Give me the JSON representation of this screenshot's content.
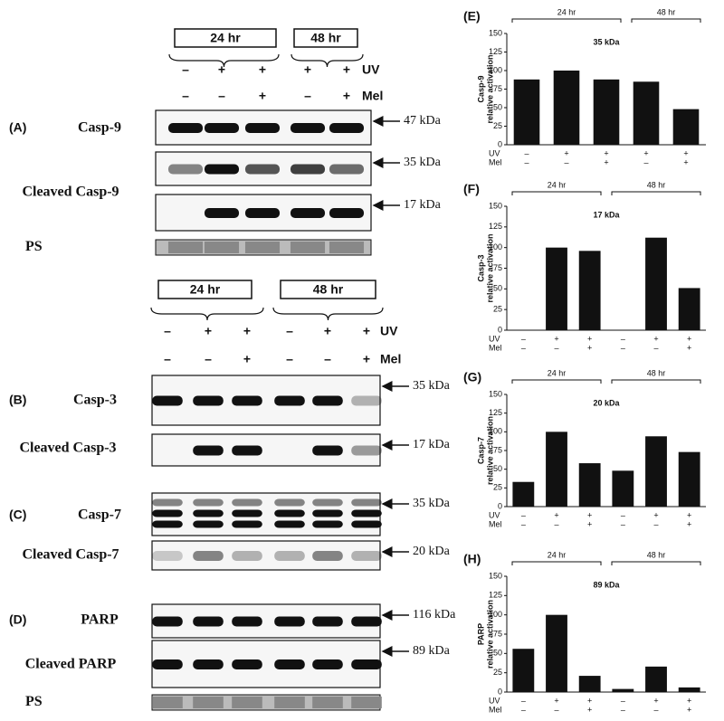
{
  "blots": [
    {
      "groups": [
        "24 hr",
        "48 hr"
      ],
      "uv": [
        "–",
        "+",
        "+",
        "+",
        "+"
      ],
      "mel": [
        "–",
        "–",
        "+",
        "–",
        "+"
      ],
      "uv_label": "UV",
      "mel_label": "Mel",
      "rows": [
        {
          "panel": "(A)",
          "name": "Casp-9",
          "marker": "47 kDa"
        },
        {
          "name": "Cleaved Casp-9",
          "marker": "35 kDa"
        },
        {
          "marker": "17 kDa"
        }
      ],
      "ps": "PS"
    },
    {
      "groups": [
        "24 hr",
        "48 hr"
      ],
      "uv": [
        "–",
        "+",
        "+",
        "–",
        "+",
        "+"
      ],
      "mel": [
        "–",
        "–",
        "+",
        "–",
        "–",
        "+"
      ],
      "uv_label": "UV",
      "mel_label": "Mel",
      "rows": [
        {
          "panel": "(B)",
          "name": "Casp-3",
          "marker": "35 kDa"
        },
        {
          "name": "Cleaved Casp-3",
          "marker": "17 kDa"
        },
        {
          "panel": "(C)",
          "name": "Casp-7",
          "marker": "35 kDa"
        },
        {
          "name": "Cleaved Casp-7",
          "marker": "20 kDa"
        },
        {
          "panel": "(D)",
          "name": "PARP",
          "marker": "116 kDa"
        },
        {
          "name": "Cleaved PARP",
          "marker": "89 kDa"
        }
      ],
      "ps": "PS"
    }
  ],
  "chart_data": [
    {
      "type": "bar",
      "panel": "(E)",
      "title": "35 kDa",
      "ylabel": [
        "Casp-9",
        "relative activation"
      ],
      "groups": [
        "24 hr",
        "48 hr"
      ],
      "row_labels": [
        "UV",
        "Mel"
      ],
      "uv": [
        "–",
        "+",
        "+",
        "+",
        "+"
      ],
      "mel": [
        "–",
        "–",
        "+",
        "–",
        "+"
      ],
      "values": [
        88,
        100,
        88,
        85,
        48
      ],
      "ylim": [
        0,
        150
      ],
      "yticks": [
        0,
        25,
        50,
        75,
        100,
        125,
        150
      ],
      "color": "#111111"
    },
    {
      "type": "bar",
      "panel": "(F)",
      "title": "17 kDa",
      "ylabel": [
        "Casp-3",
        "relative activation"
      ],
      "groups": [
        "24 hr",
        "48 hr"
      ],
      "row_labels": [
        "UV",
        "Mel"
      ],
      "uv": [
        "–",
        "+",
        "+",
        "–",
        "+",
        "+"
      ],
      "mel": [
        "–",
        "–",
        "+",
        "–",
        "–",
        "+"
      ],
      "values": [
        0,
        100,
        96,
        0,
        112,
        51
      ],
      "ylim": [
        0,
        150
      ],
      "yticks": [
        0,
        25,
        50,
        75,
        100,
        125,
        150
      ],
      "color": "#111111"
    },
    {
      "type": "bar",
      "panel": "(G)",
      "title": "20 kDa",
      "ylabel": [
        "Casp-7",
        "relative activation"
      ],
      "groups": [
        "24 hr",
        "48 hr"
      ],
      "row_labels": [
        "UV",
        "Mel"
      ],
      "uv": [
        "–",
        "+",
        "+",
        "–",
        "+",
        "+"
      ],
      "mel": [
        "–",
        "–",
        "+",
        "–",
        "–",
        "+"
      ],
      "values": [
        33,
        100,
        58,
        48,
        94,
        73
      ],
      "ylim": [
        0,
        150
      ],
      "yticks": [
        0,
        25,
        50,
        75,
        100,
        125,
        150
      ],
      "color": "#111111"
    },
    {
      "type": "bar",
      "panel": "(H)",
      "title": "89 kDa",
      "ylabel": [
        "PARP",
        "relative activation"
      ],
      "groups": [
        "24 hr",
        "48 hr"
      ],
      "row_labels": [
        "UV",
        "Mel"
      ],
      "uv": [
        "–",
        "+",
        "+",
        "–",
        "+",
        "+"
      ],
      "mel": [
        "–",
        "–",
        "+",
        "–",
        "–",
        "+"
      ],
      "values": [
        56,
        100,
        21,
        4,
        33,
        6
      ],
      "ylim": [
        0,
        150
      ],
      "yticks": [
        0,
        25,
        50,
        75,
        100,
        125,
        150
      ],
      "color": "#111111"
    }
  ]
}
